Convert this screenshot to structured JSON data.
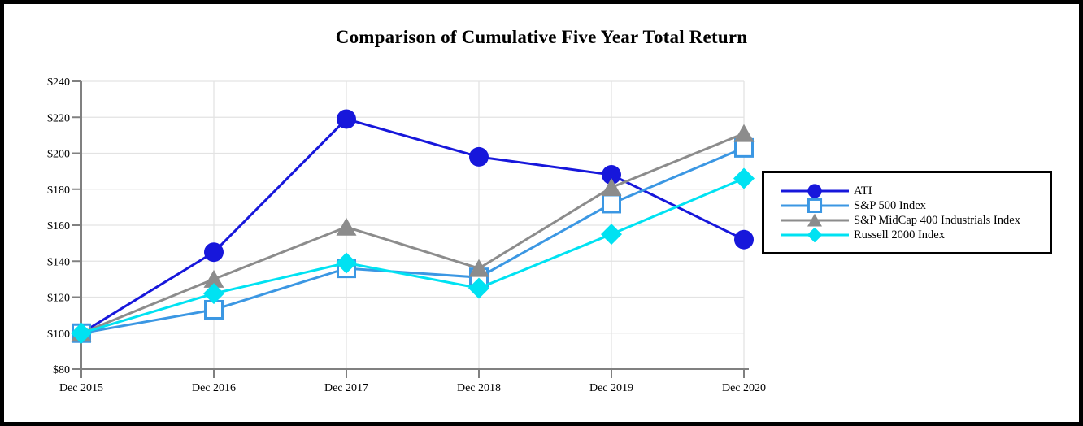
{
  "figure": {
    "title": "Comparison of Cumulative Five Year Total Return"
  },
  "chart_data": {
    "type": "line",
    "title": "Comparison of Cumulative Five Year Total Return",
    "categories": [
      "Dec 2015",
      "Dec 2016",
      "Dec 2017",
      "Dec 2018",
      "Dec 2019",
      "Dec 2020"
    ],
    "series": [
      {
        "name": "ATI",
        "marker": "circle",
        "color": "#1717DB",
        "values": [
          100,
          145,
          219,
          198,
          188,
          152
        ]
      },
      {
        "name": "S&P 500 Index",
        "marker": "open-square",
        "color": "#3B97E3",
        "values": [
          100,
          113,
          136,
          131,
          172,
          203
        ]
      },
      {
        "name": "S&P MidCap 400 Industrials Index",
        "marker": "triangle",
        "color": "#8C8C8C",
        "values": [
          100,
          130,
          159,
          136,
          181,
          211
        ]
      },
      {
        "name": "Russell 2000 Index",
        "marker": "diamond",
        "color": "#00E2F2",
        "values": [
          100,
          122,
          139,
          125,
          155,
          186
        ]
      }
    ],
    "y_axis": {
      "min": 80,
      "max": 240,
      "step": 20,
      "prefix": "$",
      "tick_labels": [
        "$80",
        "$100",
        "$120",
        "$140",
        "$160",
        "$180",
        "$200",
        "$220",
        "$240"
      ]
    },
    "x_axis": {
      "tick_labels": [
        "Dec 2015",
        "Dec 2016",
        "Dec 2017",
        "Dec 2018",
        "Dec 2019",
        "Dec 2020"
      ]
    },
    "grid": true,
    "legend_position": "right",
    "style": {
      "gridline_color": "#E3E3E3",
      "axis_color": "#808080",
      "background": "#FFFFFF",
      "border_color": "#000000"
    }
  }
}
